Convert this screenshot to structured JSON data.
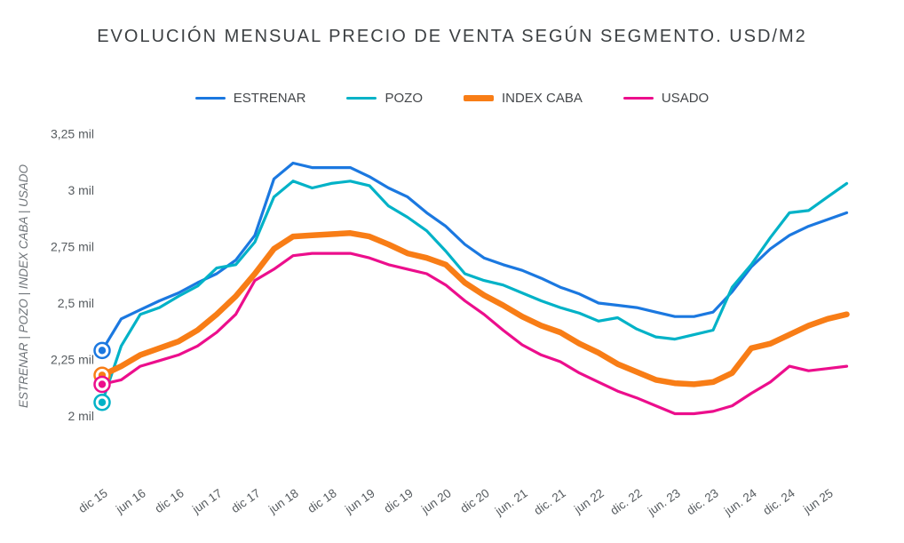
{
  "chart_data": {
    "type": "line",
    "title": "EVOLUCIÓN MENSUAL PRECIO DE VENTA SEGÚN SEGMENTO. USD/M2",
    "y_axis_title": "ESTRENAR | POZO | INDEX CABA | USADO",
    "y_unit_suffix": "mil",
    "ylim": [
      1.95,
      3.3
    ],
    "grid": false,
    "legend_position": "top",
    "start_markers": true,
    "y_ticks": [
      {
        "value": 3.25,
        "label": "3,25 mil"
      },
      {
        "value": 3.0,
        "label": "3 mil"
      },
      {
        "value": 2.75,
        "label": "2,75 mil"
      },
      {
        "value": 2.5,
        "label": "2,5 mil"
      },
      {
        "value": 2.25,
        "label": "2,25 mil"
      },
      {
        "value": 2.0,
        "label": "2 mil"
      }
    ],
    "x_axis_tick_labels": [
      "dic 15",
      "jun 16",
      "dic 16",
      "jun 17",
      "dic 17",
      "jun 18",
      "dic 18",
      "jun 19",
      "dic 19",
      "jun 20",
      "dic 20",
      "jun. 21",
      "dic. 21",
      "jun 22",
      "dic. 22",
      "jun. 23",
      "dic. 23",
      "jun. 24",
      "dic. 24",
      "jun 25"
    ],
    "x": [
      "dic 15",
      "mar 16",
      "jun 16",
      "sep 16",
      "dic 16",
      "mar 17",
      "jun 17",
      "sep 17",
      "dic 17",
      "mar 18",
      "jun 18",
      "sep 18",
      "dic 18",
      "mar 19",
      "jun 19",
      "sep 19",
      "dic 19",
      "mar 20",
      "jun 20",
      "sep 20",
      "dic 20",
      "mar 21",
      "jun 21",
      "sep 21",
      "dic 21",
      "mar 22",
      "jun 22",
      "sep 22",
      "dic 22",
      "mar 23",
      "jun 23",
      "sep 23",
      "dic 23",
      "mar 24",
      "jun 24",
      "sep 24",
      "dic 24",
      "mar 25",
      "jun 25",
      "sep 25"
    ],
    "series": [
      {
        "name": "ESTRENAR",
        "color": "#1b78e0",
        "emphasis": false,
        "values": [
          2.29,
          2.43,
          2.47,
          2.51,
          2.545,
          2.59,
          2.63,
          2.69,
          2.8,
          3.05,
          3.12,
          3.1,
          3.1,
          3.1,
          3.06,
          3.01,
          2.97,
          2.9,
          2.84,
          2.76,
          2.7,
          2.67,
          2.645,
          2.61,
          2.57,
          2.54,
          2.5,
          2.49,
          2.48,
          2.46,
          2.44,
          2.44,
          2.46,
          2.55,
          2.66,
          2.74,
          2.8,
          2.84,
          2.87,
          2.9
        ]
      },
      {
        "name": "POZO",
        "color": "#00b2c7",
        "emphasis": false,
        "values": [
          2.06,
          2.31,
          2.45,
          2.48,
          2.53,
          2.575,
          2.655,
          2.67,
          2.77,
          2.97,
          3.04,
          3.01,
          3.03,
          3.04,
          3.02,
          2.93,
          2.88,
          2.82,
          2.73,
          2.63,
          2.6,
          2.58,
          2.545,
          2.51,
          2.48,
          2.455,
          2.42,
          2.435,
          2.385,
          2.35,
          2.34,
          2.36,
          2.38,
          2.57,
          2.67,
          2.79,
          2.9,
          2.91,
          2.97,
          3.03
        ]
      },
      {
        "name": "INDEX CABA",
        "color": "#f87d16",
        "emphasis": true,
        "values": [
          2.18,
          2.22,
          2.27,
          2.3,
          2.33,
          2.38,
          2.45,
          2.53,
          2.63,
          2.74,
          2.795,
          2.8,
          2.805,
          2.81,
          2.795,
          2.76,
          2.72,
          2.7,
          2.67,
          2.59,
          2.535,
          2.49,
          2.44,
          2.4,
          2.37,
          2.32,
          2.28,
          2.23,
          2.195,
          2.16,
          2.145,
          2.14,
          2.15,
          2.19,
          2.3,
          2.32,
          2.36,
          2.4,
          2.43,
          2.45
        ]
      },
      {
        "name": "USADO",
        "color": "#ec0e8c",
        "emphasis": false,
        "values": [
          2.14,
          2.16,
          2.22,
          2.245,
          2.27,
          2.31,
          2.37,
          2.45,
          2.6,
          2.65,
          2.71,
          2.72,
          2.72,
          2.72,
          2.7,
          2.67,
          2.65,
          2.63,
          2.58,
          2.51,
          2.45,
          2.38,
          2.315,
          2.27,
          2.24,
          2.19,
          2.15,
          2.11,
          2.08,
          2.045,
          2.01,
          2.01,
          2.02,
          2.045,
          2.1,
          2.15,
          2.22,
          2.2,
          2.21,
          2.22
        ]
      }
    ]
  }
}
